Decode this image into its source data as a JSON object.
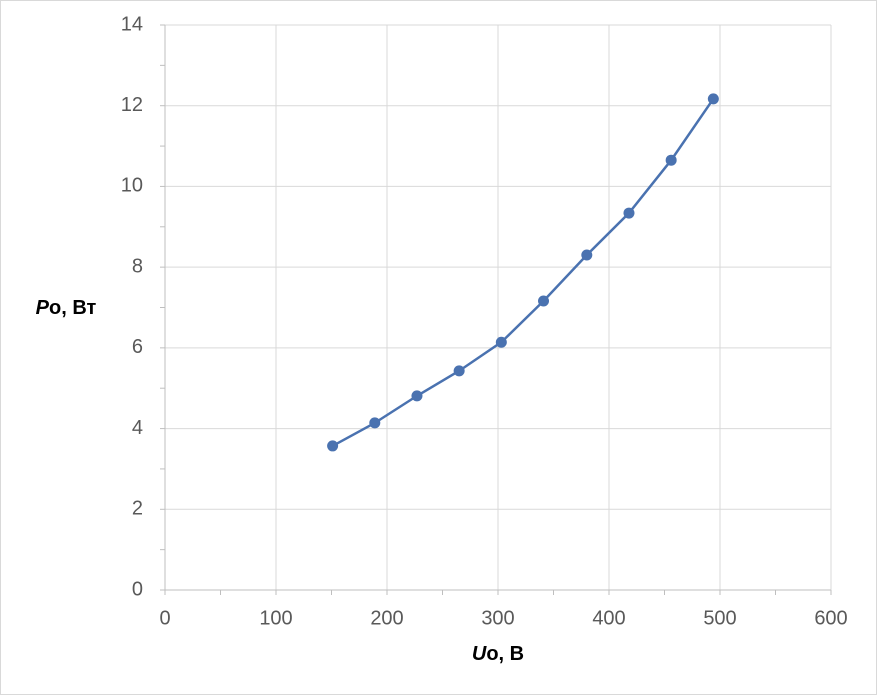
{
  "chart_data": {
    "type": "line",
    "x_label_parts": [
      "U",
      "o, В"
    ],
    "y_label_parts": [
      "P",
      "o, Вт"
    ],
    "x": [
      151,
      189,
      227,
      265,
      303,
      341,
      380,
      418,
      456,
      494
    ],
    "series": [
      {
        "color": "#4a72b0",
        "values": [
          3.57,
          4.14,
          4.81,
          5.43,
          6.14,
          7.16,
          8.3,
          9.34,
          10.65,
          12.17
        ]
      }
    ],
    "xlim": [
      0,
      600
    ],
    "xticks": [
      0,
      100,
      200,
      300,
      400,
      500,
      600
    ],
    "xminorticks": [
      50,
      150,
      250,
      350,
      450,
      550
    ],
    "ylim": [
      0,
      14
    ],
    "yticks": [
      0,
      2,
      4,
      6,
      8,
      10,
      12,
      14
    ],
    "yminorticks": [
      1,
      3,
      5,
      7,
      9,
      11,
      13
    ],
    "grid": true
  }
}
